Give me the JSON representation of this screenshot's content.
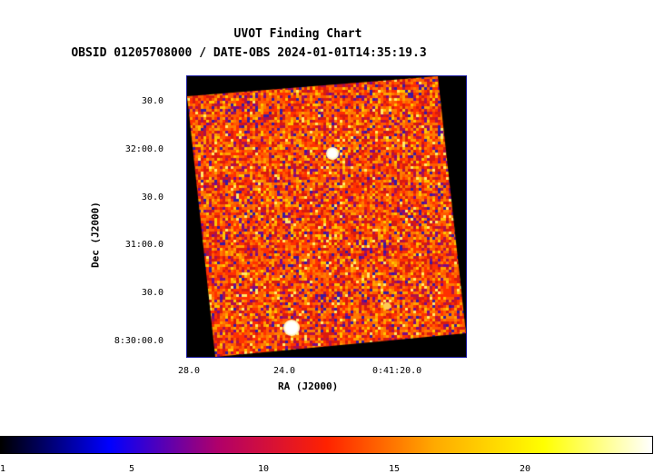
{
  "header": {
    "title": "UVOT Finding Chart",
    "subtitle": "OBSID 01205708000 / DATE-OBS 2024-01-01T14:35:19.3"
  },
  "axes": {
    "xlabel": "RA (J2000)",
    "ylabel": "Dec (J2000)",
    "xticks": [
      "28.0",
      "24.0",
      "0:41:20.0"
    ],
    "yticks": [
      "30.0",
      "32:00.0",
      "30.0",
      "31:00.0",
      "30.0",
      "8:30:00.0"
    ]
  },
  "colorbar": {
    "ticks": [
      "1",
      "5",
      "10",
      "15",
      "20"
    ],
    "colors": [
      "#000000",
      "#0000ff",
      "#b0006a",
      "#ff2200",
      "#ffaa00",
      "#ffff00",
      "#ffffff"
    ]
  }
}
